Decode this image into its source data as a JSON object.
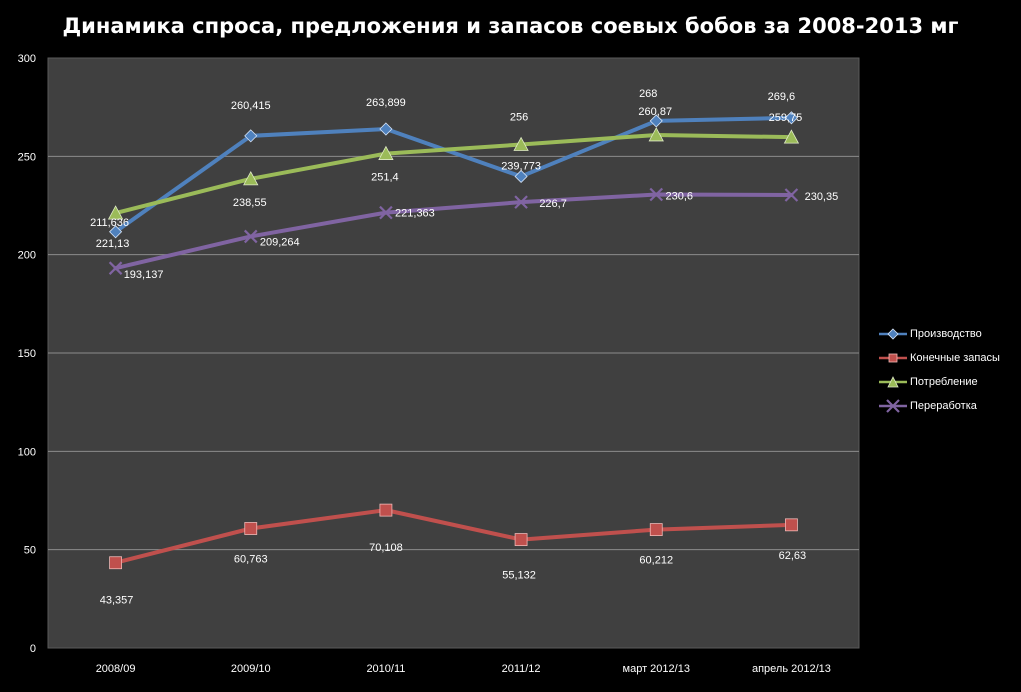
{
  "chart_data": {
    "type": "line",
    "title": "Динамика спроса, предложения и запасов соевых бобов за 2008-2013 мг",
    "categories": [
      "2008/09",
      "2009/10",
      "2010/11",
      "2011/12",
      "март 2012/13",
      "апрель 2012/13"
    ],
    "ylim": [
      0,
      300
    ],
    "yticks": [
      "0",
      "50",
      "100",
      "150",
      "200",
      "250",
      "300"
    ],
    "grid": true,
    "legend_position": "right",
    "series": [
      {
        "name": "Производство",
        "color": "#4f81bd",
        "marker": "diamond",
        "values": [
          211.636,
          260.415,
          263.899,
          239.773,
          268,
          269.6
        ],
        "labels": [
          "211,636",
          "260,415",
          "263,899",
          "239,773",
          "268",
          "269,6"
        ]
      },
      {
        "name": "Конечные запасы",
        "color": "#c0504d",
        "marker": "square",
        "values": [
          43.357,
          60.763,
          70.108,
          55.132,
          60.212,
          62.63
        ],
        "labels": [
          "43,357",
          "60,763",
          "70,108",
          "55,132",
          "60,212",
          "62,63"
        ]
      },
      {
        "name": "Потребление",
        "color": "#9bbb59",
        "marker": "triangle",
        "values": [
          221.13,
          238.55,
          251.4,
          256,
          260.87,
          259.75
        ],
        "labels": [
          "221,13",
          "238,55",
          "251,4",
          "256",
          "260,87",
          "259,75"
        ]
      },
      {
        "name": "Переработка",
        "color": "#8064a2",
        "marker": "x",
        "values": [
          193.137,
          209.264,
          221.363,
          226.7,
          230.6,
          230.35
        ],
        "labels": [
          "193,137",
          "209,264",
          "221,363",
          "226,7",
          "230,6",
          "230,35"
        ]
      }
    ]
  }
}
